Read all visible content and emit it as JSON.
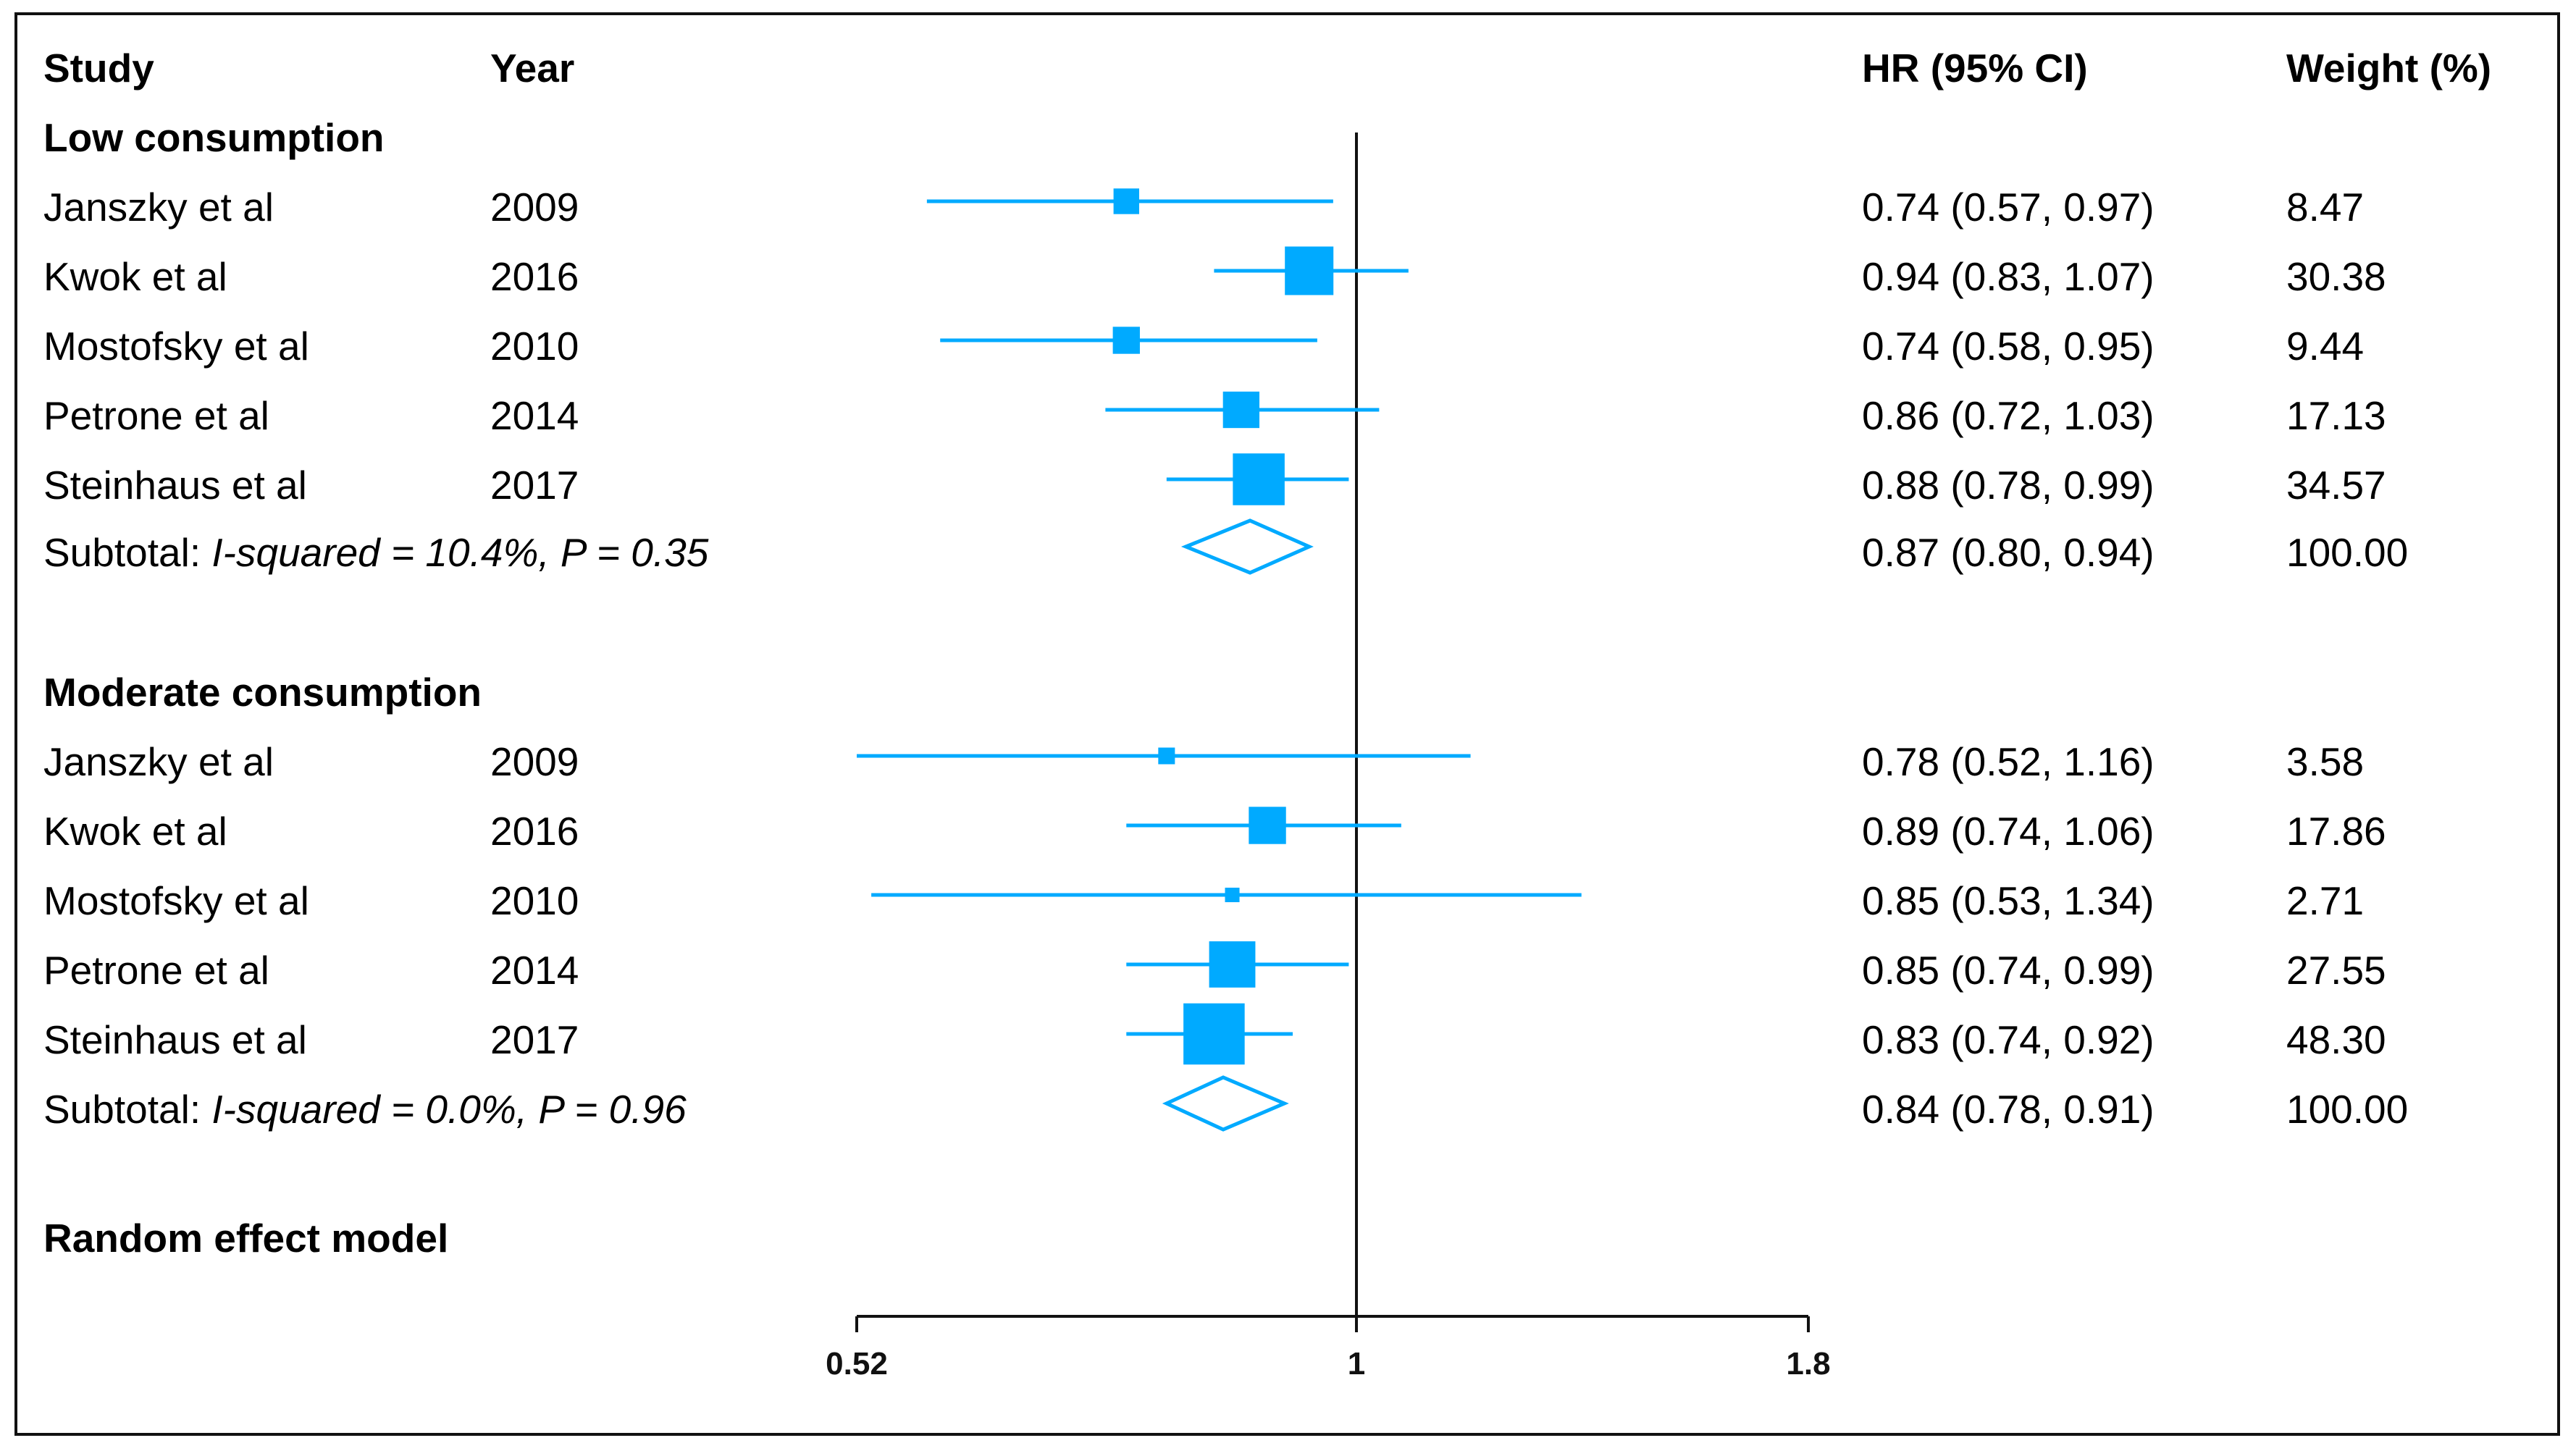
{
  "chart_data": {
    "type": "forest",
    "scale": "log",
    "headers": {
      "study": "Study",
      "year": "Year",
      "hr": "HR (95% CI)",
      "weight": "Weight (%)"
    },
    "xaxis": {
      "min": 0.52,
      "max": 1.8,
      "reference": 1,
      "ticks": [
        "0.52",
        "1",
        "1.8"
      ]
    },
    "colors": {
      "marker": "#00aaff",
      "axis": "#111111"
    },
    "groups": [
      {
        "title": "Low consumption",
        "studies": [
          {
            "study": "Janszky et al",
            "year": "2009",
            "hr": 0.74,
            "lo": 0.57,
            "hi": 0.97,
            "weight": 8.47,
            "hr_text": "0.74 (0.57, 0.97)",
            "weight_text": "8.47"
          },
          {
            "study": "Kwok et al",
            "year": "2016",
            "hr": 0.94,
            "lo": 0.83,
            "hi": 1.07,
            "weight": 30.38,
            "hr_text": "0.94 (0.83, 1.07)",
            "weight_text": "30.38"
          },
          {
            "study": "Mostofsky et al",
            "year": "2010",
            "hr": 0.74,
            "lo": 0.58,
            "hi": 0.95,
            "weight": 9.44,
            "hr_text": "0.74 (0.58, 0.95)",
            "weight_text": "9.44"
          },
          {
            "study": "Petrone et al",
            "year": "2014",
            "hr": 0.86,
            "lo": 0.72,
            "hi": 1.03,
            "weight": 17.13,
            "hr_text": "0.86 (0.72, 1.03)",
            "weight_text": "17.13"
          },
          {
            "study": "Steinhaus et al",
            "year": "2017",
            "hr": 0.88,
            "lo": 0.78,
            "hi": 0.99,
            "weight": 34.57,
            "hr_text": "0.88 (0.78, 0.99)",
            "weight_text": "34.57"
          }
        ],
        "subtotal": {
          "label": "Subtotal:",
          "stat": "I-squared = 10.4%, P = 0.35",
          "hr": 0.87,
          "lo": 0.8,
          "hi": 0.94,
          "hr_text": "0.87 (0.80, 0.94)",
          "weight_text": "100.00"
        }
      },
      {
        "title": "Moderate consumption",
        "studies": [
          {
            "study": "Janszky et al",
            "year": "2009",
            "hr": 0.78,
            "lo": 0.52,
            "hi": 1.16,
            "weight": 3.58,
            "hr_text": "0.78 (0.52, 1.16)",
            "weight_text": "3.58"
          },
          {
            "study": "Kwok et al",
            "year": "2016",
            "hr": 0.89,
            "lo": 0.74,
            "hi": 1.06,
            "weight": 17.86,
            "hr_text": "0.89 (0.74, 1.06)",
            "weight_text": "17.86"
          },
          {
            "study": "Mostofsky et al",
            "year": "2010",
            "hr": 0.85,
            "lo": 0.53,
            "hi": 1.34,
            "weight": 2.71,
            "hr_text": "0.85 (0.53, 1.34)",
            "weight_text": "2.71"
          },
          {
            "study": "Petrone et al",
            "year": "2014",
            "hr": 0.85,
            "lo": 0.74,
            "hi": 0.99,
            "weight": 27.55,
            "hr_text": "0.85 (0.74, 0.99)",
            "weight_text": "27.55"
          },
          {
            "study": "Steinhaus et al",
            "year": "2017",
            "hr": 0.83,
            "lo": 0.74,
            "hi": 0.92,
            "weight": 48.3,
            "hr_text": "0.83 (0.74, 0.92)",
            "weight_text": "48.30"
          }
        ],
        "subtotal": {
          "label": "Subtotal:",
          "stat": "I-squared = 0.0%, P = 0.96",
          "hr": 0.84,
          "lo": 0.78,
          "hi": 0.91,
          "hr_text": "0.84 (0.78, 0.91)",
          "weight_text": "100.00"
        }
      }
    ],
    "footer": "Random effect model"
  }
}
